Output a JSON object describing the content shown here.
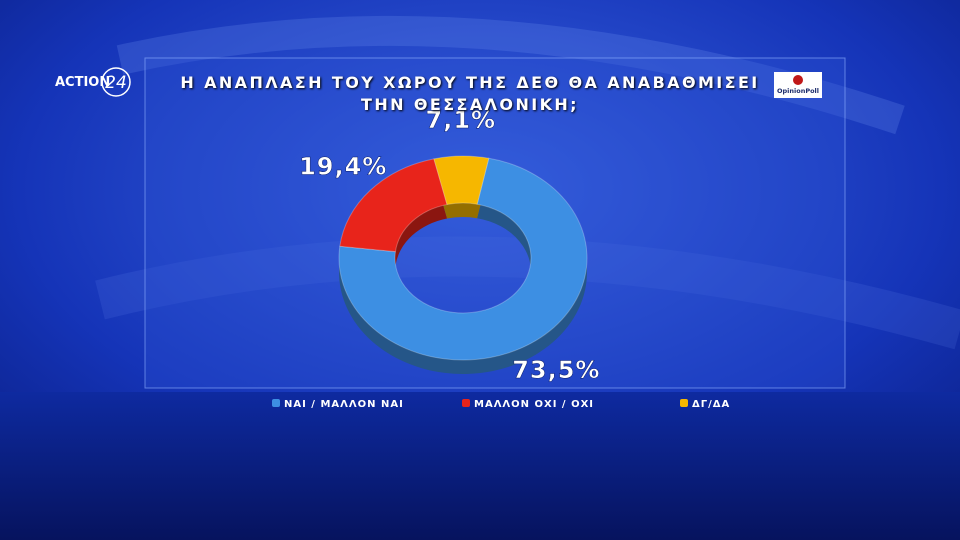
{
  "chart_data": {
    "type": "donut",
    "title": "Η ΑΝΑΠΛΑΣΗ ΤΟΥ ΧΩΡΟΥ ΤΗΣ ΔΕΘ ΘΑ ΑΝΑΒΑΘΜΙΣΕΙ ΤΗΝ ΘΕΣΣΑΛΟΝΙΚΗ;",
    "categories": [
      "ΝΑΙ / ΜΑΛΛΟΝ ΝΑΙ",
      "ΜΑΛΛΟΝ ΟΧΙ / ΟΧΙ",
      "ΔΓ/ΔΑ"
    ],
    "values": [
      73.5,
      19.4,
      7.1
    ],
    "value_labels": [
      "73,5%",
      "19,4%",
      "7,1%"
    ],
    "colors": [
      "#3d8fe3",
      "#e8241b",
      "#f6b700"
    ],
    "legend": "bottom"
  },
  "branding": {
    "channel": "ACTION",
    "channel_number": "24",
    "pollster": "OpinionPoll"
  }
}
